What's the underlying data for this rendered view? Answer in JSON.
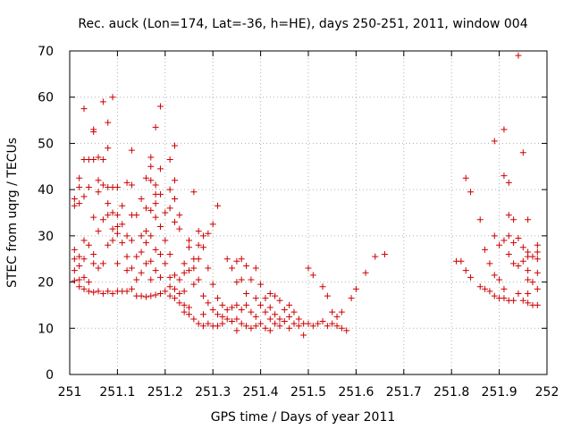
{
  "chart_data": {
    "type": "scatter",
    "title": "Rec. auck (Lon=174, Lat=-36, h=HE), days 250-251, 2011, window 004",
    "xlabel": "GPS time / Days of year 2011",
    "ylabel": "STEC from uqrg / TECUs",
    "xlim": [
      251,
      252
    ],
    "ylim": [
      0,
      70
    ],
    "grid": true,
    "marker": "+",
    "color": "#cc0000",
    "x_ticks": [
      "251",
      "251.1",
      "251.2",
      "251.3",
      "251.4",
      "251.5",
      "251.6",
      "251.7",
      "251.8",
      "251.9",
      "252"
    ],
    "y_ticks": [
      "0",
      "10",
      "20",
      "30",
      "40",
      "50",
      "60",
      "70"
    ],
    "points": [
      [
        251.01,
        38.0
      ],
      [
        251.01,
        36.5
      ],
      [
        251.01,
        27.0
      ],
      [
        251.01,
        25.0
      ],
      [
        251.01,
        22.5
      ],
      [
        251.01,
        20.3
      ],
      [
        251.02,
        42.5
      ],
      [
        251.02,
        40.5
      ],
      [
        251.02,
        37.0
      ],
      [
        251.02,
        25.5
      ],
      [
        251.02,
        23.5
      ],
      [
        251.02,
        20.5
      ],
      [
        251.02,
        19.0
      ],
      [
        251.03,
        57.5
      ],
      [
        251.03,
        46.5
      ],
      [
        251.03,
        38.5
      ],
      [
        251.03,
        29.0
      ],
      [
        251.03,
        25.0
      ],
      [
        251.03,
        21.0
      ],
      [
        251.03,
        18.5
      ],
      [
        251.04,
        46.5
      ],
      [
        251.04,
        40.5
      ],
      [
        251.04,
        28.0
      ],
      [
        251.04,
        20.0
      ],
      [
        251.04,
        18.0
      ],
      [
        251.05,
        53.0
      ],
      [
        251.05,
        52.5
      ],
      [
        251.05,
        46.5
      ],
      [
        251.05,
        34.0
      ],
      [
        251.05,
        26.0
      ],
      [
        251.05,
        24.0
      ],
      [
        251.05,
        17.8
      ],
      [
        251.06,
        47.0
      ],
      [
        251.06,
        42.0
      ],
      [
        251.06,
        39.5
      ],
      [
        251.06,
        31.0
      ],
      [
        251.06,
        23.0
      ],
      [
        251.06,
        18.0
      ],
      [
        251.07,
        59.0
      ],
      [
        251.07,
        46.5
      ],
      [
        251.07,
        41.0
      ],
      [
        251.07,
        33.5
      ],
      [
        251.07,
        24.0
      ],
      [
        251.07,
        17.5
      ],
      [
        251.08,
        54.5
      ],
      [
        251.08,
        49.0
      ],
      [
        251.08,
        40.5
      ],
      [
        251.08,
        37.0
      ],
      [
        251.08,
        34.5
      ],
      [
        251.08,
        28.0
      ],
      [
        251.08,
        18.0
      ],
      [
        251.09,
        60.0
      ],
      [
        251.09,
        40.5
      ],
      [
        251.09,
        35.0
      ],
      [
        251.09,
        31.5
      ],
      [
        251.09,
        29.0
      ],
      [
        251.09,
        17.5
      ],
      [
        251.1,
        40.5
      ],
      [
        251.1,
        34.5
      ],
      [
        251.1,
        32.0
      ],
      [
        251.1,
        30.5
      ],
      [
        251.1,
        24.0
      ],
      [
        251.1,
        18.0
      ],
      [
        251.11,
        36.5
      ],
      [
        251.11,
        32.5
      ],
      [
        251.11,
        28.5
      ],
      [
        251.11,
        18.0
      ],
      [
        251.12,
        41.5
      ],
      [
        251.12,
        30.0
      ],
      [
        251.12,
        25.5
      ],
      [
        251.12,
        22.5
      ],
      [
        251.12,
        18.0
      ],
      [
        251.13,
        48.5
      ],
      [
        251.13,
        41.0
      ],
      [
        251.13,
        34.5
      ],
      [
        251.13,
        29.0
      ],
      [
        251.13,
        23.0
      ],
      [
        251.13,
        18.5
      ],
      [
        251.14,
        34.5
      ],
      [
        251.14,
        25.5
      ],
      [
        251.14,
        20.5
      ],
      [
        251.14,
        17.0
      ],
      [
        251.15,
        38.0
      ],
      [
        251.15,
        30.0
      ],
      [
        251.15,
        26.5
      ],
      [
        251.15,
        22.0
      ],
      [
        251.15,
        17.0
      ],
      [
        251.16,
        42.5
      ],
      [
        251.16,
        36.0
      ],
      [
        251.16,
        31.0
      ],
      [
        251.16,
        28.5
      ],
      [
        251.16,
        24.0
      ],
      [
        251.16,
        16.8
      ],
      [
        251.17,
        47.0
      ],
      [
        251.17,
        45.0
      ],
      [
        251.17,
        42.0
      ],
      [
        251.17,
        35.5
      ],
      [
        251.17,
        30.0
      ],
      [
        251.17,
        24.5
      ],
      [
        251.17,
        20.5
      ],
      [
        251.17,
        17.0
      ],
      [
        251.18,
        53.5
      ],
      [
        251.18,
        41.0
      ],
      [
        251.18,
        39.0
      ],
      [
        251.18,
        37.0
      ],
      [
        251.18,
        34.0
      ],
      [
        251.18,
        27.0
      ],
      [
        251.18,
        22.5
      ],
      [
        251.18,
        17.2
      ],
      [
        251.19,
        58.0
      ],
      [
        251.19,
        44.5
      ],
      [
        251.19,
        39.0
      ],
      [
        251.19,
        32.0
      ],
      [
        251.19,
        26.0
      ],
      [
        251.19,
        21.0
      ],
      [
        251.19,
        17.5
      ],
      [
        251.2,
        35.0
      ],
      [
        251.2,
        29.0
      ],
      [
        251.2,
        24.0
      ],
      [
        251.2,
        18.0
      ],
      [
        251.21,
        46.5
      ],
      [
        251.21,
        40.0
      ],
      [
        251.21,
        36.0
      ],
      [
        251.21,
        26.0
      ],
      [
        251.21,
        21.0
      ],
      [
        251.21,
        19.0
      ],
      [
        251.21,
        17.0
      ],
      [
        251.22,
        49.5
      ],
      [
        251.22,
        42.0
      ],
      [
        251.22,
        38.0
      ],
      [
        251.22,
        33.0
      ],
      [
        251.22,
        21.5
      ],
      [
        251.22,
        18.5
      ],
      [
        251.22,
        16.5
      ],
      [
        251.23,
        34.5
      ],
      [
        251.23,
        31.5
      ],
      [
        251.23,
        20.5
      ],
      [
        251.23,
        17.5
      ],
      [
        251.23,
        15.5
      ],
      [
        251.24,
        24.0
      ],
      [
        251.24,
        22.0
      ],
      [
        251.24,
        18.0
      ],
      [
        251.24,
        15.0
      ],
      [
        251.24,
        13.5
      ],
      [
        251.25,
        29.0
      ],
      [
        251.25,
        27.5
      ],
      [
        251.25,
        22.5
      ],
      [
        251.25,
        14.5
      ],
      [
        251.25,
        13.0
      ],
      [
        251.26,
        39.5
      ],
      [
        251.26,
        25.0
      ],
      [
        251.26,
        23.0
      ],
      [
        251.26,
        19.5
      ],
      [
        251.26,
        12.0
      ],
      [
        251.27,
        31.0
      ],
      [
        251.27,
        28.0
      ],
      [
        251.27,
        25.0
      ],
      [
        251.27,
        20.5
      ],
      [
        251.27,
        11.0
      ],
      [
        251.28,
        30.0
      ],
      [
        251.28,
        27.5
      ],
      [
        251.28,
        17.0
      ],
      [
        251.28,
        13.0
      ],
      [
        251.28,
        10.5
      ],
      [
        251.29,
        30.5
      ],
      [
        251.29,
        23.0
      ],
      [
        251.29,
        15.5
      ],
      [
        251.29,
        11.0
      ],
      [
        251.3,
        32.5
      ],
      [
        251.3,
        19.5
      ],
      [
        251.3,
        14.0
      ],
      [
        251.3,
        10.5
      ],
      [
        251.31,
        36.5
      ],
      [
        251.31,
        16.5
      ],
      [
        251.31,
        13.0
      ],
      [
        251.31,
        10.5
      ],
      [
        251.32,
        15.0
      ],
      [
        251.32,
        12.5
      ],
      [
        251.32,
        11.0
      ],
      [
        251.33,
        25.0
      ],
      [
        251.33,
        14.0
      ],
      [
        251.33,
        12.0
      ],
      [
        251.34,
        23.0
      ],
      [
        251.34,
        14.5
      ],
      [
        251.34,
        11.5
      ],
      [
        251.35,
        24.5
      ],
      [
        251.35,
        20.0
      ],
      [
        251.35,
        15.0
      ],
      [
        251.35,
        12.0
      ],
      [
        251.35,
        9.5
      ],
      [
        251.36,
        25.0
      ],
      [
        251.36,
        20.5
      ],
      [
        251.36,
        14.0
      ],
      [
        251.36,
        11.0
      ],
      [
        251.37,
        23.5
      ],
      [
        251.37,
        17.5
      ],
      [
        251.37,
        15.0
      ],
      [
        251.37,
        10.5
      ],
      [
        251.38,
        20.5
      ],
      [
        251.38,
        13.5
      ],
      [
        251.38,
        10.0
      ],
      [
        251.39,
        23.0
      ],
      [
        251.39,
        16.5
      ],
      [
        251.39,
        12.5
      ],
      [
        251.39,
        10.5
      ],
      [
        251.4,
        19.5
      ],
      [
        251.4,
        15.0
      ],
      [
        251.4,
        11.0
      ],
      [
        251.41,
        16.5
      ],
      [
        251.41,
        13.5
      ],
      [
        251.41,
        10.0
      ],
      [
        251.42,
        17.5
      ],
      [
        251.42,
        14.5
      ],
      [
        251.42,
        12.0
      ],
      [
        251.42,
        9.5
      ],
      [
        251.43,
        17.0
      ],
      [
        251.43,
        13.0
      ],
      [
        251.43,
        11.0
      ],
      [
        251.44,
        16.0
      ],
      [
        251.44,
        12.0
      ],
      [
        251.44,
        10.5
      ],
      [
        251.45,
        14.0
      ],
      [
        251.45,
        11.5
      ],
      [
        251.46,
        15.0
      ],
      [
        251.46,
        12.5
      ],
      [
        251.46,
        10.0
      ],
      [
        251.47,
        13.5
      ],
      [
        251.47,
        11.0
      ],
      [
        251.48,
        12.0
      ],
      [
        251.48,
        10.5
      ],
      [
        251.49,
        11.0
      ],
      [
        251.49,
        8.5
      ],
      [
        251.5,
        23.0
      ],
      [
        251.5,
        11.0
      ],
      [
        251.51,
        21.5
      ],
      [
        251.51,
        10.5
      ],
      [
        251.52,
        11.0
      ],
      [
        251.53,
        19.0
      ],
      [
        251.53,
        11.5
      ],
      [
        251.54,
        17.0
      ],
      [
        251.54,
        10.5
      ],
      [
        251.55,
        13.5
      ],
      [
        251.55,
        11.0
      ],
      [
        251.56,
        12.5
      ],
      [
        251.56,
        10.5
      ],
      [
        251.57,
        13.5
      ],
      [
        251.57,
        10.0
      ],
      [
        251.58,
        9.5
      ],
      [
        251.59,
        16.5
      ],
      [
        251.6,
        18.5
      ],
      [
        251.62,
        22.0
      ],
      [
        251.64,
        25.5
      ],
      [
        251.66,
        26.0
      ],
      [
        251.81,
        24.5
      ],
      [
        251.82,
        24.5
      ],
      [
        251.83,
        42.5
      ],
      [
        251.83,
        22.5
      ],
      [
        251.84,
        39.5
      ],
      [
        251.84,
        21.0
      ],
      [
        251.86,
        33.5
      ],
      [
        251.86,
        19.0
      ],
      [
        251.87,
        27.0
      ],
      [
        251.87,
        18.5
      ],
      [
        251.88,
        24.0
      ],
      [
        251.88,
        18.0
      ],
      [
        251.89,
        50.5
      ],
      [
        251.89,
        30.0
      ],
      [
        251.89,
        21.5
      ],
      [
        251.89,
        17.0
      ],
      [
        251.9,
        28.0
      ],
      [
        251.9,
        20.5
      ],
      [
        251.9,
        16.5
      ],
      [
        251.91,
        53.0
      ],
      [
        251.91,
        43.0
      ],
      [
        251.91,
        29.0
      ],
      [
        251.91,
        18.5
      ],
      [
        251.91,
        16.5
      ],
      [
        251.92,
        41.5
      ],
      [
        251.92,
        34.5
      ],
      [
        251.92,
        30.0
      ],
      [
        251.92,
        26.0
      ],
      [
        251.92,
        16.0
      ],
      [
        251.93,
        33.5
      ],
      [
        251.93,
        28.5
      ],
      [
        251.93,
        24.0
      ],
      [
        251.93,
        16.0
      ],
      [
        251.94,
        69.0
      ],
      [
        251.94,
        29.5
      ],
      [
        251.94,
        23.5
      ],
      [
        251.94,
        17.5
      ],
      [
        251.95,
        48.0
      ],
      [
        251.95,
        27.5
      ],
      [
        251.95,
        24.5
      ],
      [
        251.95,
        16.0
      ],
      [
        251.96,
        33.5
      ],
      [
        251.96,
        26.5
      ],
      [
        251.96,
        25.5
      ],
      [
        251.96,
        22.5
      ],
      [
        251.96,
        20.5
      ],
      [
        251.96,
        17.5
      ],
      [
        251.96,
        15.5
      ],
      [
        251.97,
        25.5
      ],
      [
        251.97,
        20.0
      ],
      [
        251.97,
        15.0
      ],
      [
        251.98,
        28.0
      ],
      [
        251.98,
        26.5
      ],
      [
        251.98,
        25.0
      ],
      [
        251.98,
        22.0
      ],
      [
        251.98,
        18.5
      ],
      [
        251.98,
        15.0
      ]
    ]
  }
}
